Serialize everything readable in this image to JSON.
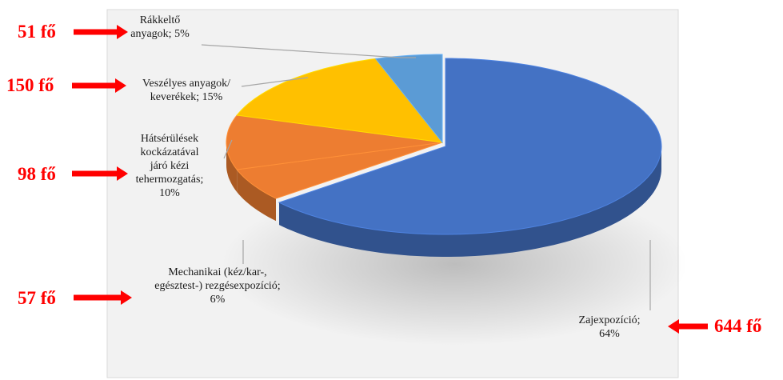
{
  "chart_data": {
    "type": "pie",
    "title": "",
    "style": "3d-exploded",
    "legend": "none",
    "slices": [
      {
        "label": "Zajexpozíció",
        "value": 64,
        "color": "#4472c4",
        "count_label": "644 fő",
        "label_lines": [
          "Zajexpozíció;",
          "64%"
        ]
      },
      {
        "label": "Mechanikai (kéz/kar-, egésztest-) rezgésexpozíció",
        "value": 6,
        "color": "#ed7d31",
        "count_label": "57 fő",
        "label_lines": [
          "Mechanikai (kéz/kar-,",
          "egésztest-) rezgésexpozíció;",
          "6%"
        ]
      },
      {
        "label": "Hátsérülések kockázatával járó kézi tehermozgatás",
        "value": 10,
        "color": "#ed7d31",
        "count_label": "98 fő",
        "label_lines": [
          "Hátsérülések",
          "kockázatával",
          "járó kézi",
          "tehermozgatás;",
          "10%"
        ]
      },
      {
        "label": "Veszélyes anyagok/keverékek",
        "value": 15,
        "color": "#ffc000",
        "count_label": "150 fő",
        "label_lines": [
          "Veszélyes anyagok/",
          "keverékek; 15%"
        ]
      },
      {
        "label": "Rákkeltő anyagok",
        "value": 5,
        "color": "#5b9bd5",
        "count_label": "51 fő",
        "label_lines": [
          "Rákkeltő",
          "anyagok; 5%"
        ]
      }
    ],
    "arrow_color": "#ff0000"
  }
}
